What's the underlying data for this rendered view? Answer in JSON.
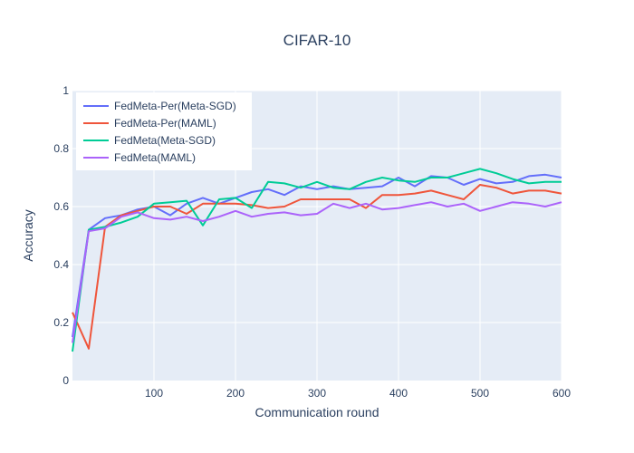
{
  "chart_data": {
    "type": "line",
    "title": "CIFAR-10",
    "xlabel": "Communication round",
    "ylabel": "Accuracy",
    "xlim": [
      0,
      600
    ],
    "ylim": [
      0,
      1
    ],
    "xticks": [
      100,
      200,
      300,
      400,
      500,
      600
    ],
    "xtick_labels": [
      "100",
      "200",
      "300",
      "400",
      "500",
      "600"
    ],
    "yticks": [
      0,
      0.2,
      0.4,
      0.6,
      0.8,
      1
    ],
    "ytick_labels": [
      "0",
      "0.2",
      "0.4",
      "0.6",
      "0.8",
      "1"
    ],
    "grid": true,
    "legend_position": "top-left",
    "background_color": "#e5ecf6",
    "x": [
      0,
      20,
      40,
      60,
      80,
      100,
      120,
      140,
      160,
      180,
      200,
      220,
      240,
      260,
      280,
      300,
      320,
      340,
      360,
      380,
      400,
      420,
      440,
      460,
      480,
      500,
      520,
      540,
      560,
      580,
      600
    ],
    "series": [
      {
        "name": "FedMeta-Per(Meta-SGD)",
        "color": "#636efa",
        "values": [
          0.15,
          0.52,
          0.56,
          0.57,
          0.59,
          0.6,
          0.57,
          0.61,
          0.63,
          0.61,
          0.63,
          0.65,
          0.66,
          0.64,
          0.67,
          0.66,
          0.67,
          0.66,
          0.665,
          0.67,
          0.7,
          0.67,
          0.705,
          0.7,
          0.675,
          0.695,
          0.68,
          0.685,
          0.705,
          0.71,
          0.7
        ]
      },
      {
        "name": "FedMeta-Per(MAML)",
        "color": "#ef553b",
        "values": [
          0.235,
          0.11,
          0.53,
          0.57,
          0.585,
          0.6,
          0.6,
          0.575,
          0.61,
          0.61,
          0.61,
          0.605,
          0.595,
          0.6,
          0.625,
          0.625,
          0.625,
          0.625,
          0.595,
          0.64,
          0.64,
          0.645,
          0.655,
          0.64,
          0.625,
          0.675,
          0.665,
          0.645,
          0.655,
          0.655,
          0.645
        ]
      },
      {
        "name": "FedMeta(Meta-SGD)",
        "color": "#00cc96",
        "values": [
          0.1,
          0.52,
          0.53,
          0.545,
          0.565,
          0.61,
          0.615,
          0.62,
          0.535,
          0.625,
          0.63,
          0.595,
          0.685,
          0.68,
          0.665,
          0.685,
          0.665,
          0.66,
          0.685,
          0.7,
          0.69,
          0.685,
          0.7,
          0.7,
          0.715,
          0.73,
          0.715,
          0.695,
          0.68,
          0.685,
          0.685
        ]
      },
      {
        "name": "FedMeta(MAML)",
        "color": "#ab63fa",
        "values": [
          0.13,
          0.515,
          0.525,
          0.565,
          0.58,
          0.56,
          0.555,
          0.565,
          0.55,
          0.565,
          0.585,
          0.565,
          0.575,
          0.58,
          0.57,
          0.575,
          0.61,
          0.595,
          0.61,
          0.59,
          0.595,
          0.605,
          0.615,
          0.6,
          0.61,
          0.585,
          0.6,
          0.615,
          0.61,
          0.6,
          0.615
        ]
      }
    ]
  }
}
